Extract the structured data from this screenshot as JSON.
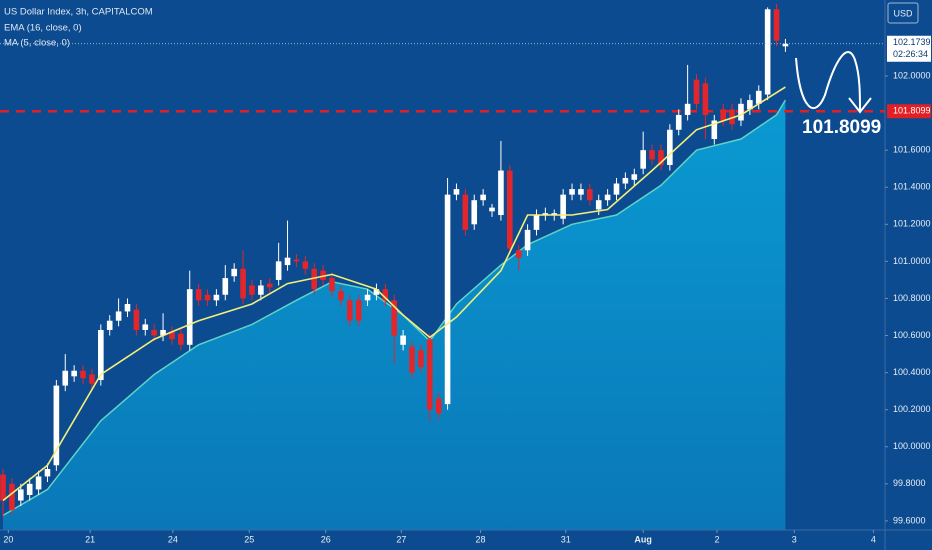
{
  "chart_data": {
    "type": "candlestick",
    "title": "US Dollar Index, 3h, CAPITALCOM",
    "currency": "USD",
    "open": [
      99.85,
      99.8,
      99.71,
      99.74,
      99.77,
      99.84,
      99.9,
      100.33,
      100.38,
      100.41,
      100.39,
      100.36,
      100.63,
      100.68,
      100.73,
      100.74,
      100.63,
      100.63,
      100.6,
      100.62,
      100.61,
      100.55,
      100.85,
      100.82,
      100.79,
      100.82,
      100.92,
      100.96,
      100.87,
      100.82,
      100.88,
      100.9,
      100.98,
      101.01,
      101.0,
      100.96,
      100.95,
      100.91,
      100.84,
      100.79,
      100.79,
      100.79,
      100.82,
      100.85,
      100.79,
      100.55,
      100.54,
      100.52,
      100.58,
      100.26,
      100.23,
      101.36,
      101.36,
      101.2,
      101.33,
      101.27,
      101.25,
      101.49,
      101.06,
      101.06,
      101.17,
      101.25,
      101.25,
      101.23,
      101.36,
      101.36,
      101.39,
      101.28,
      101.33,
      101.36,
      101.42,
      101.44,
      101.5,
      101.6,
      101.6,
      101.52,
      101.71,
      101.79,
      101.98,
      101.96,
      101.66,
      101.82,
      101.82,
      101.76,
      101.82,
      101.85,
      101.9,
      102.36,
      102.16
    ],
    "high": [
      99.88,
      99.83,
      99.8,
      99.83,
      99.87,
      99.91,
      100.36,
      100.5,
      100.44,
      100.44,
      100.42,
      100.66,
      100.71,
      100.8,
      100.8,
      100.77,
      100.69,
      100.66,
      100.72,
      100.65,
      100.64,
      100.95,
      100.88,
      100.85,
      100.85,
      100.98,
      100.99,
      101.06,
      100.9,
      100.9,
      100.91,
      101.1,
      101.22,
      101.04,
      101.03,
      100.99,
      100.98,
      100.94,
      100.87,
      100.82,
      100.82,
      100.85,
      100.88,
      100.88,
      100.82,
      100.63,
      100.57,
      100.55,
      100.61,
      100.29,
      101.45,
      101.42,
      101.39,
      101.36,
      101.39,
      101.31,
      101.65,
      101.52,
      101.09,
      101.2,
      101.28,
      101.29,
      101.28,
      101.39,
      101.42,
      101.42,
      101.42,
      101.36,
      101.39,
      101.45,
      101.48,
      101.5,
      101.7,
      101.63,
      101.63,
      101.74,
      101.82,
      102.06,
      102.01,
      101.99,
      101.79,
      101.85,
      101.85,
      101.88,
      101.9,
      101.95,
      102.37,
      102.39,
      102.2
    ],
    "low": [
      99.62,
      99.63,
      99.68,
      99.71,
      99.74,
      99.81,
      99.87,
      100.3,
      100.35,
      100.34,
      100.31,
      100.33,
      100.6,
      100.65,
      100.7,
      100.6,
      100.6,
      100.57,
      100.57,
      100.55,
      100.52,
      100.52,
      100.76,
      100.76,
      100.76,
      100.79,
      100.89,
      100.77,
      100.79,
      100.79,
      100.83,
      100.87,
      100.95,
      100.97,
      100.93,
      100.82,
      100.87,
      100.81,
      100.76,
      100.65,
      100.65,
      100.76,
      100.79,
      100.76,
      100.45,
      100.52,
      100.37,
      100.4,
      100.14,
      100.15,
      100.2,
      101.33,
      101.14,
      101.17,
      101.3,
      101.24,
      101.22,
      101.04,
      100.95,
      101.03,
      101.14,
      101.22,
      101.22,
      101.2,
      101.33,
      101.33,
      101.3,
      101.25,
      101.3,
      101.33,
      101.39,
      101.41,
      101.47,
      101.52,
      101.49,
      101.49,
      101.68,
      101.76,
      101.82,
      101.66,
      101.63,
      101.73,
      101.71,
      101.73,
      101.79,
      101.82,
      101.87,
      102.16,
      102.13
    ],
    "close": [
      99.71,
      99.66,
      99.77,
      99.8,
      99.84,
      99.88,
      100.33,
      100.41,
      100.41,
      100.37,
      100.34,
      100.63,
      100.68,
      100.73,
      100.77,
      100.63,
      100.66,
      100.6,
      100.63,
      100.58,
      100.55,
      100.85,
      100.79,
      100.79,
      100.82,
      100.91,
      100.96,
      100.8,
      100.82,
      100.87,
      100.86,
      101.0,
      101.02,
      101.0,
      100.96,
      100.85,
      100.9,
      100.84,
      100.79,
      100.68,
      100.68,
      100.82,
      100.85,
      100.79,
      100.6,
      100.6,
      100.4,
      100.43,
      100.2,
      100.18,
      101.36,
      101.39,
      101.17,
      101.33,
      101.36,
      101.29,
      101.49,
      101.07,
      101.02,
      101.17,
      101.25,
      101.26,
      101.26,
      101.36,
      101.39,
      101.39,
      101.33,
      101.33,
      101.36,
      101.42,
      101.45,
      101.47,
      101.6,
      101.55,
      101.52,
      101.71,
      101.79,
      101.85,
      101.85,
      101.79,
      101.76,
      101.76,
      101.74,
      101.85,
      101.87,
      101.92,
      102.36,
      102.19,
      102.1739
    ],
    "up_color": "#ffffff",
    "down_color": "#e3262b",
    "ema": {
      "name": "EMA (16, close, 0)",
      "color": "#f4ef78",
      "x": [
        0,
        5,
        11,
        17,
        22,
        28,
        32,
        37,
        42,
        45,
        48,
        51,
        56,
        59,
        64,
        68,
        73,
        78,
        83,
        88
      ],
      "values": [
        99.71,
        99.9,
        100.39,
        100.58,
        100.68,
        100.77,
        100.88,
        100.93,
        100.85,
        100.71,
        100.59,
        100.7,
        100.95,
        101.25,
        101.25,
        101.28,
        101.49,
        101.71,
        101.79,
        101.94
      ]
    },
    "ma": {
      "name": "MA (5, close, 0)",
      "color": "#0a8ec6",
      "line_color": "#5fd3c6",
      "x": [
        0,
        5,
        11,
        17,
        22,
        28,
        33,
        37,
        41,
        45,
        48,
        51,
        56,
        59,
        64,
        69,
        74,
        78,
        83,
        87,
        88
      ],
      "values": [
        99.63,
        99.77,
        100.14,
        100.39,
        100.55,
        100.66,
        100.79,
        100.89,
        100.85,
        100.71,
        100.57,
        100.77,
        100.98,
        101.09,
        101.2,
        101.25,
        101.41,
        101.6,
        101.66,
        101.79,
        101.87
      ]
    },
    "last_price": 102.1739,
    "countdown": "02:26:34",
    "level": 101.8099,
    "level_color": "#e31f26",
    "xlim": [
      -0.34,
      99.2
    ],
    "xticks": [
      {
        "value": 0.6,
        "label": "20"
      },
      {
        "value": 9.8,
        "label": "21"
      },
      {
        "value": 19.1,
        "label": "24"
      },
      {
        "value": 27.7,
        "label": "25"
      },
      {
        "value": 36.3,
        "label": "26"
      },
      {
        "value": 44.8,
        "label": "27"
      },
      {
        "value": 53.7,
        "label": "28"
      },
      {
        "value": 63.3,
        "label": "31"
      },
      {
        "value": 72,
        "label": "Aug"
      },
      {
        "value": 80.3,
        "label": "2"
      },
      {
        "value": 89,
        "label": "3"
      },
      {
        "value": 97.9,
        "label": "4"
      }
    ],
    "ylim": [
      99.551,
      102.41
    ],
    "yticks": [
      {
        "value": 99.6,
        "label": "99.6000"
      },
      {
        "value": 99.8,
        "label": "99.8000"
      },
      {
        "value": 100.0,
        "label": "100.0000"
      },
      {
        "value": 100.2,
        "label": "100.2000"
      },
      {
        "value": 100.4,
        "label": "100.4000"
      },
      {
        "value": 100.6,
        "label": "100.6000"
      },
      {
        "value": 100.8,
        "label": "100.8000"
      },
      {
        "value": 101.0,
        "label": "101.0000"
      },
      {
        "value": 101.2,
        "label": "101.2000"
      },
      {
        "value": 101.4,
        "label": "101.4000"
      },
      {
        "value": 101.6,
        "label": "101.6000"
      },
      {
        "value": 102.0,
        "label": "102.0000"
      }
    ]
  }
}
